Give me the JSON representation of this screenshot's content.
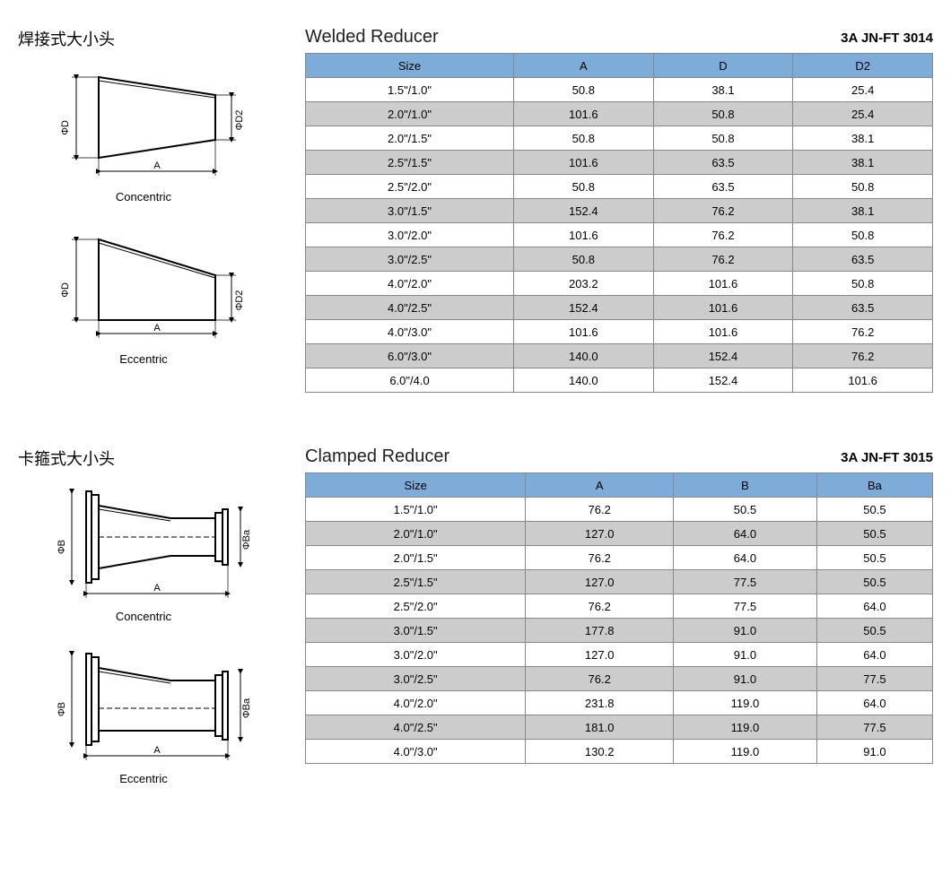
{
  "colors": {
    "header_bg": "#7cacd7",
    "row_alt_bg": "#cccccc",
    "row_bg": "#ffffff",
    "border": "#888888",
    "diagram_fill": "#ffffff",
    "diagram_stroke": "#000000"
  },
  "section1": {
    "cn_title": "焊接式大小头",
    "en_title": "Welded Reducer",
    "code": "3A   JN-FT 3014",
    "diagram1_caption": "Concentric",
    "diagram2_caption": "Eccentric",
    "dim_labels": {
      "d": "ΦD",
      "d2": "ΦD2",
      "a": "A"
    },
    "table": {
      "columns": [
        "Size",
        "A",
        "D",
        "D2"
      ],
      "rows": [
        [
          "1.5\"/1.0\"",
          "50.8",
          "38.1",
          "25.4"
        ],
        [
          "2.0\"/1.0\"",
          "101.6",
          "50.8",
          "25.4"
        ],
        [
          "2.0\"/1.5\"",
          "50.8",
          "50.8",
          "38.1"
        ],
        [
          "2.5\"/1.5\"",
          "101.6",
          "63.5",
          "38.1"
        ],
        [
          "2.5\"/2.0\"",
          "50.8",
          "63.5",
          "50.8"
        ],
        [
          "3.0\"/1.5\"",
          "152.4",
          "76.2",
          "38.1"
        ],
        [
          "3.0\"/2.0\"",
          "101.6",
          "76.2",
          "50.8"
        ],
        [
          "3.0\"/2.5\"",
          "50.8",
          "76.2",
          "63.5"
        ],
        [
          "4.0\"/2.0\"",
          "203.2",
          "101.6",
          "50.8"
        ],
        [
          "4.0\"/2.5\"",
          "152.4",
          "101.6",
          "63.5"
        ],
        [
          "4.0\"/3.0\"",
          "101.6",
          "101.6",
          "76.2"
        ],
        [
          "6.0\"/3.0\"",
          "140.0",
          "152.4",
          "76.2"
        ],
        [
          "6.0\"/4.0",
          "140.0",
          "152.4",
          "101.6"
        ]
      ]
    }
  },
  "section2": {
    "cn_title": "卡箍式大小头",
    "en_title": "Clamped Reducer",
    "code": "3A   JN-FT 3015",
    "diagram1_caption": "Concentric",
    "diagram2_caption": "Eccentric",
    "dim_labels": {
      "b": "ΦB",
      "ba": "ΦBa",
      "a": "A"
    },
    "table": {
      "columns": [
        "Size",
        "A",
        "B",
        "Ba"
      ],
      "rows": [
        [
          "1.5\"/1.0\"",
          "76.2",
          "50.5",
          "50.5"
        ],
        [
          "2.0\"/1.0\"",
          "127.0",
          "64.0",
          "50.5"
        ],
        [
          "2.0\"/1.5\"",
          "76.2",
          "64.0",
          "50.5"
        ],
        [
          "2.5\"/1.5\"",
          "127.0",
          "77.5",
          "50.5"
        ],
        [
          "2.5\"/2.0\"",
          "76.2",
          "77.5",
          "64.0"
        ],
        [
          "3.0\"/1.5\"",
          "177.8",
          "91.0",
          "50.5"
        ],
        [
          "3.0\"/2.0\"",
          "127.0",
          "91.0",
          "64.0"
        ],
        [
          "3.0\"/2.5\"",
          "76.2",
          "91.0",
          "77.5"
        ],
        [
          "4.0\"/2.0\"",
          "231.8",
          "119.0",
          "64.0"
        ],
        [
          "4.0\"/2.5\"",
          "181.0",
          "119.0",
          "77.5"
        ],
        [
          "4.0\"/3.0\"",
          "130.2",
          "119.0",
          "91.0"
        ]
      ]
    }
  }
}
